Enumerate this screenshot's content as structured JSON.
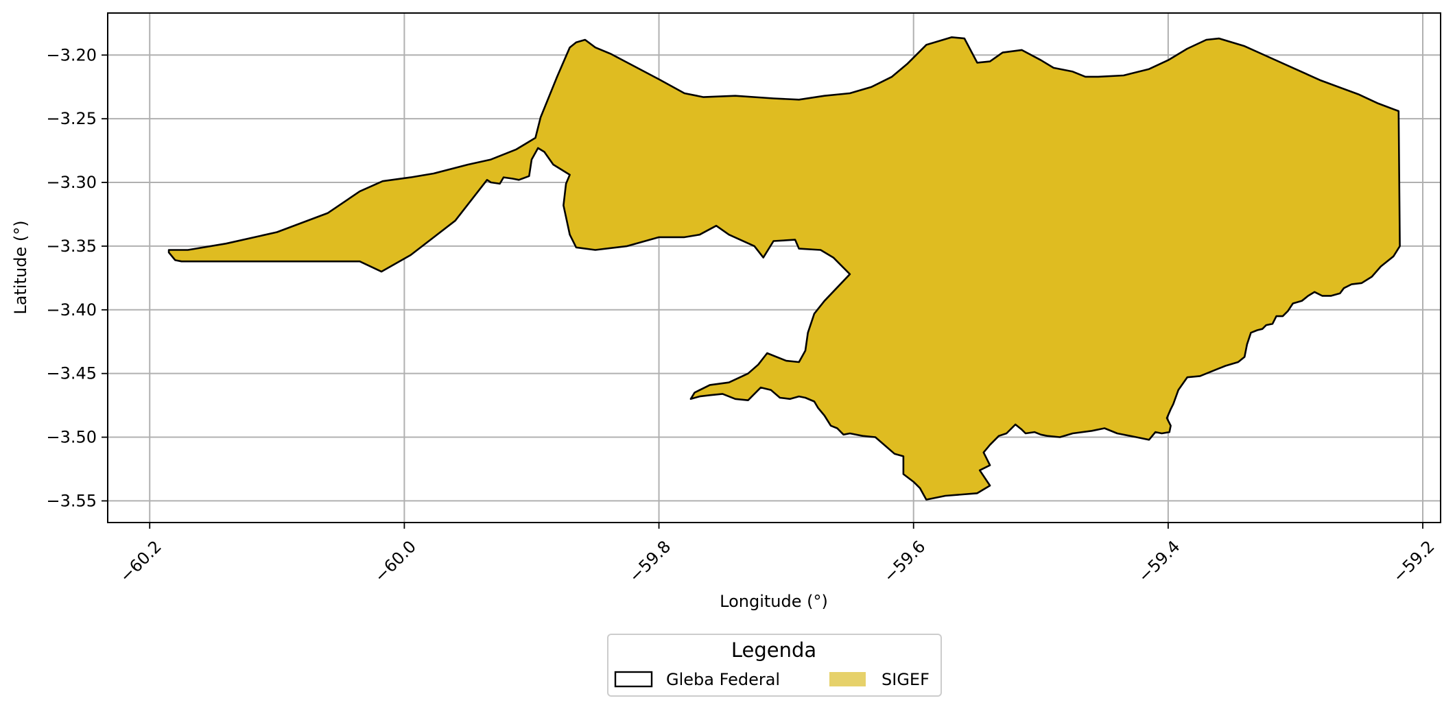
{
  "chart_data": {
    "type": "map",
    "xlabel": "Longitude (°)",
    "ylabel": "Latitude (°)",
    "xlim": [
      -60.233,
      -59.186
    ],
    "ylim": [
      -3.567,
      -3.167
    ],
    "x_ticks": [
      -60.2,
      -60.0,
      -59.8,
      -59.6,
      -59.4,
      -59.2
    ],
    "x_tick_labels": [
      "−60.2",
      "−60.0",
      "−59.8",
      "−59.6",
      "−59.4",
      "−59.2"
    ],
    "y_ticks": [
      -3.2,
      -3.25,
      -3.3,
      -3.35,
      -3.4,
      -3.45,
      -3.5,
      -3.55
    ],
    "y_tick_labels": [
      "−3.20",
      "−3.25",
      "−3.30",
      "−3.35",
      "−3.40",
      "−3.45",
      "−3.50",
      "−3.55"
    ],
    "grid": true,
    "colors": {
      "polygon_fill": "#dfbc21",
      "polygon_edge": "#000000",
      "grid": "#b0b0b0",
      "legend_sigef": "#e6d16a"
    },
    "polygon": {
      "name": "area",
      "coordinates": [
        [
          -60.185,
          -3.353
        ],
        [
          -60.17,
          -3.353
        ],
        [
          -60.14,
          -3.348
        ],
        [
          -60.1,
          -3.339
        ],
        [
          -60.06,
          -3.324
        ],
        [
          -60.035,
          -3.307
        ],
        [
          -60.017,
          -3.299
        ],
        [
          -59.995,
          -3.296
        ],
        [
          -59.977,
          -3.293
        ],
        [
          -59.95,
          -3.286
        ],
        [
          -59.932,
          -3.282
        ],
        [
          -59.912,
          -3.274
        ],
        [
          -59.897,
          -3.265
        ],
        [
          -59.893,
          -3.249
        ],
        [
          -59.88,
          -3.217
        ],
        [
          -59.87,
          -3.194
        ],
        [
          -59.865,
          -3.19
        ],
        [
          -59.858,
          -3.188
        ],
        [
          -59.85,
          -3.194
        ],
        [
          -59.838,
          -3.199
        ],
        [
          -59.8,
          -3.219
        ],
        [
          -59.78,
          -3.23
        ],
        [
          -59.765,
          -3.233
        ],
        [
          -59.74,
          -3.232
        ],
        [
          -59.71,
          -3.234
        ],
        [
          -59.69,
          -3.235
        ],
        [
          -59.67,
          -3.232
        ],
        [
          -59.65,
          -3.23
        ],
        [
          -59.633,
          -3.225
        ],
        [
          -59.617,
          -3.217
        ],
        [
          -59.605,
          -3.207
        ],
        [
          -59.59,
          -3.192
        ],
        [
          -59.57,
          -3.186
        ],
        [
          -59.56,
          -3.187
        ],
        [
          -59.55,
          -3.206
        ],
        [
          -59.54,
          -3.205
        ],
        [
          -59.53,
          -3.198
        ],
        [
          -59.515,
          -3.196
        ],
        [
          -59.5,
          -3.204
        ],
        [
          -59.49,
          -3.21
        ],
        [
          -59.475,
          -3.213
        ],
        [
          -59.465,
          -3.217
        ],
        [
          -59.455,
          -3.217
        ],
        [
          -59.435,
          -3.216
        ],
        [
          -59.415,
          -3.211
        ],
        [
          -59.4,
          -3.204
        ],
        [
          -59.385,
          -3.195
        ],
        [
          -59.37,
          -3.188
        ],
        [
          -59.36,
          -3.187
        ],
        [
          -59.34,
          -3.193
        ],
        [
          -59.32,
          -3.202
        ],
        [
          -59.3,
          -3.211
        ],
        [
          -59.28,
          -3.22
        ],
        [
          -59.25,
          -3.231
        ],
        [
          -59.235,
          -3.238
        ],
        [
          -59.219,
          -3.244
        ],
        [
          -59.218,
          -3.35
        ],
        [
          -59.223,
          -3.358
        ],
        [
          -59.233,
          -3.366
        ],
        [
          -59.24,
          -3.374
        ],
        [
          -59.248,
          -3.379
        ],
        [
          -59.256,
          -3.38
        ],
        [
          -59.262,
          -3.383
        ],
        [
          -59.265,
          -3.387
        ],
        [
          -59.272,
          -3.389
        ],
        [
          -59.279,
          -3.389
        ],
        [
          -59.285,
          -3.386
        ],
        [
          -59.29,
          -3.389
        ],
        [
          -59.295,
          -3.393
        ],
        [
          -59.302,
          -3.395
        ],
        [
          -59.306,
          -3.401
        ],
        [
          -59.31,
          -3.405
        ],
        [
          -59.315,
          -3.405
        ],
        [
          -59.318,
          -3.411
        ],
        [
          -59.323,
          -3.412
        ],
        [
          -59.326,
          -3.415
        ],
        [
          -59.33,
          -3.416
        ],
        [
          -59.335,
          -3.418
        ],
        [
          -59.338,
          -3.427
        ],
        [
          -59.34,
          -3.437
        ],
        [
          -59.345,
          -3.441
        ],
        [
          -59.355,
          -3.444
        ],
        [
          -59.36,
          -3.446
        ],
        [
          -59.375,
          -3.452
        ],
        [
          -59.385,
          -3.453
        ],
        [
          -59.392,
          -3.463
        ],
        [
          -59.396,
          -3.474
        ],
        [
          -59.398,
          -3.478
        ],
        [
          -59.401,
          -3.485
        ],
        [
          -59.398,
          -3.491
        ],
        [
          -59.399,
          -3.496
        ],
        [
          -59.405,
          -3.497
        ],
        [
          -59.41,
          -3.496
        ],
        [
          -59.415,
          -3.502
        ],
        [
          -59.425,
          -3.5
        ],
        [
          -59.44,
          -3.497
        ],
        [
          -59.45,
          -3.493
        ],
        [
          -59.46,
          -3.495
        ],
        [
          -59.475,
          -3.497
        ],
        [
          -59.485,
          -3.5
        ],
        [
          -59.495,
          -3.499
        ],
        [
          -59.5,
          -3.498
        ],
        [
          -59.505,
          -3.496
        ],
        [
          -59.512,
          -3.497
        ],
        [
          -59.515,
          -3.494
        ],
        [
          -59.52,
          -3.49
        ],
        [
          -59.527,
          -3.497
        ],
        [
          -59.533,
          -3.499
        ],
        [
          -59.54,
          -3.506
        ],
        [
          -59.545,
          -3.512
        ],
        [
          -59.54,
          -3.522
        ],
        [
          -59.548,
          -3.526
        ],
        [
          -59.54,
          -3.538
        ],
        [
          -59.55,
          -3.544
        ],
        [
          -59.575,
          -3.546
        ],
        [
          -59.59,
          -3.549
        ],
        [
          -59.595,
          -3.54
        ],
        [
          -59.6,
          -3.535
        ],
        [
          -59.608,
          -3.529
        ],
        [
          -59.608,
          -3.515
        ],
        [
          -59.615,
          -3.513
        ],
        [
          -59.63,
          -3.5
        ],
        [
          -59.64,
          -3.499
        ],
        [
          -59.65,
          -3.497
        ],
        [
          -59.655,
          -3.498
        ],
        [
          -59.66,
          -3.493
        ],
        [
          -59.665,
          -3.491
        ],
        [
          -59.67,
          -3.483
        ],
        [
          -59.675,
          -3.477
        ],
        [
          -59.678,
          -3.472
        ],
        [
          -59.685,
          -3.469
        ],
        [
          -59.69,
          -3.468
        ],
        [
          -59.697,
          -3.47
        ],
        [
          -59.705,
          -3.469
        ],
        [
          -59.712,
          -3.463
        ],
        [
          -59.72,
          -3.461
        ],
        [
          -59.73,
          -3.471
        ],
        [
          -59.74,
          -3.47
        ],
        [
          -59.75,
          -3.466
        ],
        [
          -59.76,
          -3.467
        ],
        [
          -59.768,
          -3.468
        ],
        [
          -59.775,
          -3.47
        ],
        [
          -59.772,
          -3.465
        ],
        [
          -59.76,
          -3.459
        ],
        [
          -59.745,
          -3.457
        ],
        [
          -59.73,
          -3.45
        ],
        [
          -59.722,
          -3.443
        ],
        [
          -59.715,
          -3.434
        ],
        [
          -59.7,
          -3.44
        ],
        [
          -59.69,
          -3.441
        ],
        [
          -59.685,
          -3.432
        ],
        [
          -59.683,
          -3.418
        ],
        [
          -59.678,
          -3.403
        ],
        [
          -59.67,
          -3.393
        ],
        [
          -59.65,
          -3.372
        ],
        [
          -59.663,
          -3.359
        ],
        [
          -59.673,
          -3.353
        ],
        [
          -59.69,
          -3.352
        ],
        [
          -59.693,
          -3.345
        ],
        [
          -59.71,
          -3.346
        ],
        [
          -59.718,
          -3.359
        ],
        [
          -59.725,
          -3.35
        ],
        [
          -59.745,
          -3.341
        ],
        [
          -59.755,
          -3.334
        ],
        [
          -59.768,
          -3.341
        ],
        [
          -59.78,
          -3.343
        ],
        [
          -59.8,
          -3.343
        ],
        [
          -59.825,
          -3.35
        ],
        [
          -59.85,
          -3.353
        ],
        [
          -59.865,
          -3.351
        ],
        [
          -59.87,
          -3.341
        ],
        [
          -59.875,
          -3.318
        ],
        [
          -59.873,
          -3.301
        ],
        [
          -59.87,
          -3.294
        ],
        [
          -59.883,
          -3.286
        ],
        [
          -59.89,
          -3.276
        ],
        [
          -59.895,
          -3.273
        ],
        [
          -59.9,
          -3.282
        ],
        [
          -59.902,
          -3.295
        ],
        [
          -59.91,
          -3.298
        ],
        [
          -59.915,
          -3.297
        ],
        [
          -59.922,
          -3.296
        ],
        [
          -59.925,
          -3.301
        ],
        [
          -59.932,
          -3.3
        ],
        [
          -59.935,
          -3.298
        ],
        [
          -59.96,
          -3.33
        ],
        [
          -59.995,
          -3.357
        ],
        [
          -60.018,
          -3.37
        ],
        [
          -60.035,
          -3.362
        ],
        [
          -60.06,
          -3.362
        ],
        [
          -60.12,
          -3.362
        ],
        [
          -60.175,
          -3.362
        ],
        [
          -60.18,
          -3.361
        ],
        [
          -60.185,
          -3.355
        ]
      ]
    },
    "legend": {
      "title": "Legenda",
      "placement": "bottom-center, below axes",
      "entries": [
        {
          "label": "Gleba Federal",
          "style": "outline"
        },
        {
          "label": "SIGEF",
          "style": "filled"
        }
      ]
    }
  }
}
